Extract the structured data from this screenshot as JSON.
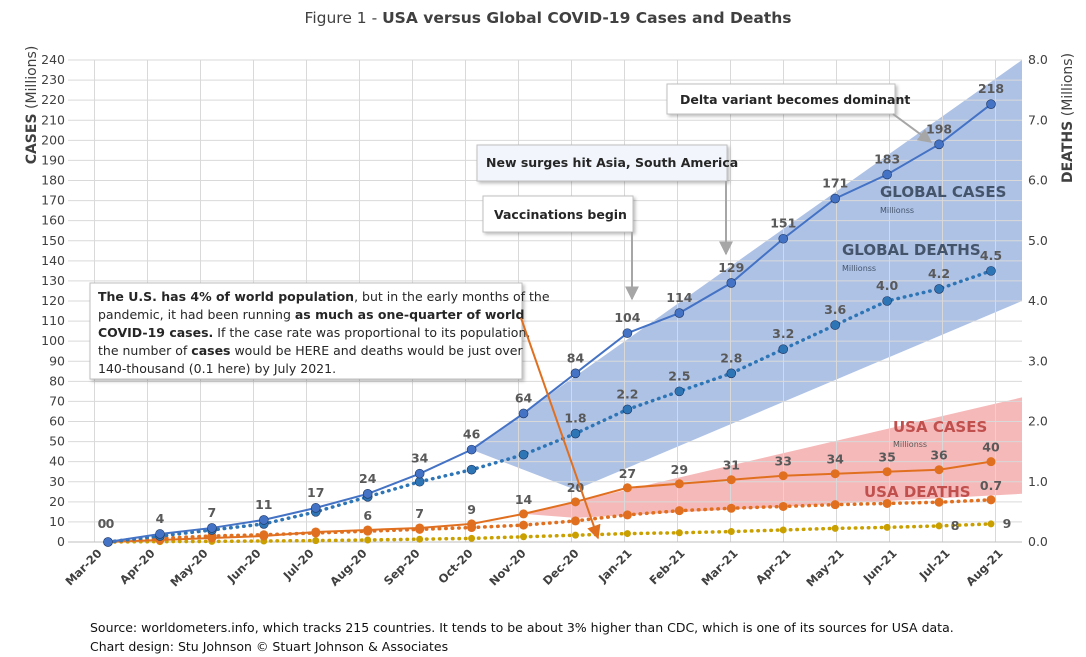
{
  "chart_data": {
    "type": "line",
    "title_prefix": "Figure 1 - ",
    "title_main": "USA versus Global COVID-19 Cases and Deaths",
    "ylabel_left_bold": "CASES",
    "ylabel_left_rest": " (Millions)",
    "ylabel_right_bold": "DEATHS",
    "ylabel_right_rest": " (Millions)",
    "categories": [
      "Mar-20",
      "Apr-20",
      "May-20",
      "Jun-20",
      "Jul-20",
      "Aug-20",
      "Sep-20",
      "Oct-20",
      "Nov-20",
      "Dec-20",
      "Jan-21",
      "Feb-21",
      "Mar-21",
      "Apr-21",
      "May-21",
      "Jun-21",
      "Jul-21",
      "Aug-21"
    ],
    "y_left": {
      "min": 0,
      "max": 240,
      "step": 10
    },
    "y_right": {
      "min": 0,
      "max": 8,
      "step": 1,
      "tick_labels": [
        "0.0",
        "1.0",
        "2.0",
        "3.0",
        "4.0",
        "5.0",
        "6.0",
        "7.0",
        "8.0"
      ]
    },
    "series": [
      {
        "key": "global_cases",
        "axis": "left",
        "style": "solid",
        "color": "#4472C4",
        "values": [
          0,
          4,
          7,
          11,
          17,
          24,
          34,
          46,
          64,
          84,
          104,
          114,
          129,
          151,
          171,
          183,
          198,
          218
        ],
        "labels": [
          "0",
          "4",
          "7",
          "11",
          "17",
          "24",
          "34",
          "46",
          "64",
          "84",
          "104",
          "114",
          "129",
          "151",
          "171",
          "183",
          "198",
          "218"
        ]
      },
      {
        "key": "global_deaths",
        "axis": "right",
        "style": "dotted",
        "color": "#2E75B6",
        "values": [
          0.0,
          0.1,
          0.2,
          0.3,
          0.5,
          0.75,
          1.0,
          1.2,
          1.45,
          1.8,
          2.2,
          2.5,
          2.8,
          3.2,
          3.6,
          4.0,
          4.2,
          4.5
        ],
        "labels": [
          "",
          "",
          "",
          "",
          "",
          "",
          "",
          "",
          "",
          "1.8",
          "2.2",
          "2.5",
          "2.8",
          "3.2",
          "3.6",
          "4.0",
          "4.2",
          "4.5"
        ]
      },
      {
        "key": "usa_cases",
        "axis": "left",
        "style": "solid",
        "color": "#E07020",
        "values": [
          0,
          1,
          2,
          3,
          5,
          6,
          7,
          9,
          14,
          20,
          27,
          29,
          31,
          33,
          34,
          35,
          36,
          40
        ],
        "labels": [
          "0",
          "",
          "",
          "",
          "",
          "6",
          "7",
          "9",
          "14",
          "20",
          "27",
          "29",
          "31",
          "33",
          "34",
          "35",
          "36",
          "40"
        ]
      },
      {
        "key": "usa_deaths",
        "axis": "right",
        "style": "dotted",
        "color": "#E07020",
        "values": [
          0.0,
          0.06,
          0.1,
          0.12,
          0.15,
          0.18,
          0.21,
          0.24,
          0.28,
          0.35,
          0.45,
          0.52,
          0.56,
          0.59,
          0.62,
          0.64,
          0.66,
          0.7
        ],
        "labels": [
          "",
          "",
          "",
          "",
          "",
          "",
          "",
          "",
          "",
          "",
          "",
          "",
          "",
          "",
          "",
          "",
          "",
          "0.7"
        ]
      },
      {
        "key": "usa_proportional",
        "axis": "left",
        "style": "dotted",
        "color": "#C9A000",
        "values": [
          0,
          0.2,
          0.3,
          0.5,
          0.7,
          1,
          1.4,
          1.8,
          2.6,
          3.4,
          4.2,
          4.6,
          5.2,
          6,
          6.8,
          7.3,
          8,
          9
        ],
        "labels": [
          "",
          "",
          "",
          "",
          "",
          "",
          "",
          "",
          "",
          "",
          "",
          "",
          "",
          "",
          "",
          "",
          "8",
          "9"
        ]
      }
    ],
    "series_labels": {
      "global_cases": "GLOBAL CASES",
      "global_cases_sub": "Millionss",
      "global_deaths": "GLOBAL DEATHS",
      "global_deaths_sub": "Millionss",
      "usa_cases": "USA CASES",
      "usa_cases_sub": "Millionss",
      "usa_deaths": "USA DEATHS"
    },
    "annotations": {
      "delta": "Delta variant becomes dominant",
      "surges": "New surges hit Asia, South America",
      "vaccinations": "Vaccinations begin",
      "note_lines": [
        [
          {
            "t": "The U.S. has 4% of world population",
            "b": true
          },
          {
            "t": ", but in the early months of the",
            "b": false
          }
        ],
        [
          {
            "t": "pandemic, it had been running ",
            "b": false
          },
          {
            "t": "as much as one-quarter of world",
            "b": true
          }
        ],
        [
          {
            "t": "COVID-19 cases.",
            "b": true
          },
          {
            "t": " If the case rate was proportional to its population,",
            "b": false
          }
        ],
        [
          {
            "t": "the number of ",
            "b": false
          },
          {
            "t": "cases",
            "b": true
          },
          {
            "t": " would be HERE and deaths would be just over",
            "b": false
          }
        ],
        [
          {
            "t": "140-thousand (0.1 here) by July 2021.",
            "b": false
          }
        ]
      ]
    },
    "grid": true,
    "colors": {
      "global_band": "#8FAADC",
      "usa_band": "#F4A7A7",
      "axis_text": "#404040",
      "grid": "#D9D9D9",
      "label_text": "#595959"
    }
  },
  "footer": {
    "source": "Source: worldometers.info, which tracks 215 countries. It tends to be about 3% higher than CDC, which is one of its sources for USA data.",
    "design": "Chart design: Stu Johnson  © Stuart Johnson & Associates"
  }
}
